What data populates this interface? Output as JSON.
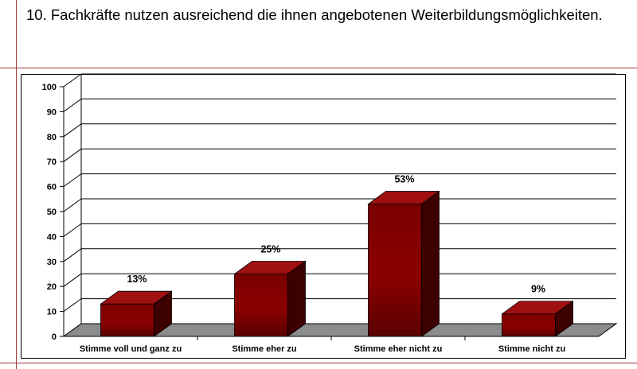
{
  "slide": {
    "title": "10. Fachkräfte nutzen ausreichend die ihnen angebotenen Weiterbildungsmöglichkeiten."
  },
  "colors": {
    "bar_front": "#8b0000",
    "bar_top": "#a01010",
    "bar_side": "#3c0000",
    "floor": "#8c8c8c",
    "rule": "#9a3a3a"
  },
  "chart_data": {
    "type": "bar",
    "title": "",
    "xlabel": "",
    "ylabel": "",
    "ylim": [
      0,
      100
    ],
    "yticks": [
      0,
      10,
      20,
      30,
      40,
      50,
      60,
      70,
      80,
      90,
      100
    ],
    "grid": true,
    "categories": [
      "Stimme voll und ganz zu",
      "Stimme eher zu",
      "Stimme eher nicht zu",
      "Stimme nicht zu"
    ],
    "values": [
      13,
      25,
      53,
      9
    ],
    "data_labels": [
      "13%",
      "25%",
      "53%",
      "9%"
    ]
  }
}
